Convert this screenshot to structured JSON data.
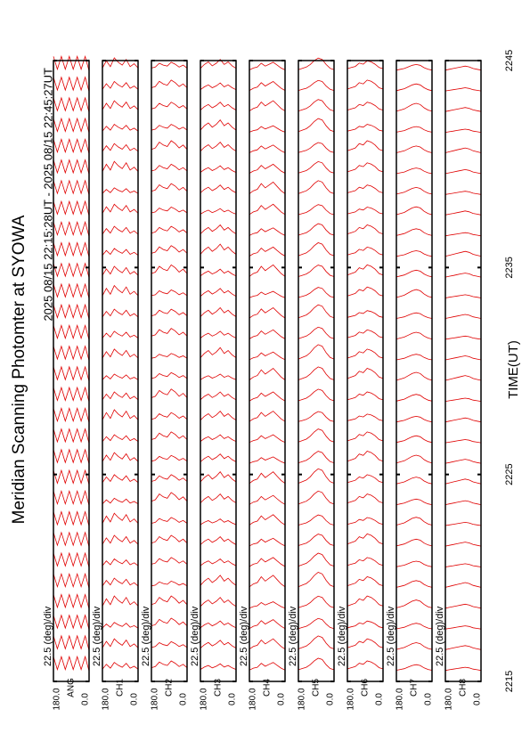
{
  "chart_data": {
    "type": "msp",
    "title": "Meridian Scanning Photomter at SYOWA",
    "subtitle": "2025 08/15 22:15:28UT - 2025 08/15 22:45:27UT",
    "xlabel": "TIME(UT)",
    "scale_label": "22.5 (deg)/div",
    "color": "#e00000",
    "xlim": [
      2215,
      2245
    ],
    "xticks": [
      2215,
      2225,
      2235,
      2245
    ],
    "anglim": [
      180,
      0
    ],
    "angle_ticks": [
      {
        "value": 180,
        "label": "180.0"
      },
      {
        "value": 0,
        "label": "0.0"
      }
    ],
    "angles": [
      0,
      20,
      40,
      60,
      80,
      100,
      120,
      140,
      160,
      180
    ],
    "scan_times": [
      2215.5,
      2216.5,
      2217.5,
      2218.5,
      2219.5,
      2220.5,
      2221.5,
      2222.5,
      2223.5,
      2224.5,
      2225.5,
      2226.5,
      2227.5,
      2228.5,
      2229.5,
      2230.5,
      2231.5,
      2232.5,
      2233.5,
      2234.5,
      2235.5,
      2236.5,
      2237.5,
      2238.5,
      2239.5,
      2240.5,
      2241.5,
      2242.5,
      2243.5,
      2244.5
    ],
    "panels": [
      {
        "name": "ANG",
        "profile": [
          0,
          0.9,
          0.1,
          0.9,
          0.1,
          0.9,
          0.1,
          0.9,
          0.1,
          0.9
        ],
        "amplitudes": [
          1,
          1,
          1,
          1,
          1,
          1,
          1,
          1,
          1,
          1,
          1,
          1,
          1,
          1,
          1,
          1,
          1,
          1,
          1,
          1,
          1,
          1,
          1,
          1,
          1,
          1,
          1,
          1,
          1,
          1
        ]
      },
      {
        "name": "CH1",
        "profile": [
          0.2,
          0.5,
          0.3,
          0.8,
          0.4,
          0.6,
          0.9,
          0.3,
          0.7,
          0.2
        ],
        "amplitudes": [
          0.6,
          0.8,
          0.5,
          0.9,
          0.7,
          0.6,
          0.8,
          0.9,
          0.5,
          0.7,
          0.8,
          0.6,
          0.9,
          0.7,
          0.5,
          0.8,
          0.6,
          0.7,
          0.9,
          0.8,
          0.6,
          0.7,
          0.8,
          0.5,
          0.9,
          0.7,
          0.6,
          0.8,
          0.7,
          0.9
        ]
      },
      {
        "name": "CH2",
        "profile": [
          0.3,
          0.6,
          0.4,
          0.7,
          0.9,
          0.5,
          0.6,
          0.8,
          0.4,
          0.3
        ],
        "amplitudes": [
          0.7,
          0.6,
          0.8,
          0.9,
          0.5,
          0.7,
          0.8,
          0.6,
          0.9,
          0.7,
          0.6,
          0.8,
          0.7,
          0.9,
          0.6,
          0.5,
          0.8,
          0.7,
          0.6,
          0.9,
          0.8,
          0.7,
          0.6,
          0.8,
          0.7,
          0.9,
          0.6,
          0.7,
          0.8,
          0.6
        ]
      },
      {
        "name": "CH3",
        "profile": [
          0.2,
          0.4,
          0.7,
          0.5,
          0.9,
          0.6,
          0.4,
          0.7,
          0.5,
          0.2
        ],
        "amplitudes": [
          0.5,
          0.7,
          0.6,
          0.8,
          0.9,
          0.6,
          0.7,
          0.5,
          0.8,
          0.9,
          0.7,
          0.6,
          0.8,
          0.7,
          0.5,
          0.9,
          0.6,
          0.8,
          0.7,
          0.6,
          0.9,
          0.8,
          0.5,
          0.7,
          0.6,
          0.8,
          0.9,
          0.7,
          0.6,
          0.8
        ]
      },
      {
        "name": "CH4",
        "profile": [
          0.1,
          0.3,
          0.6,
          0.9,
          0.7,
          0.5,
          0.8,
          0.4,
          0.3,
          0.1
        ],
        "amplitudes": [
          0.6,
          0.8,
          0.7,
          0.5,
          0.9,
          0.7,
          0.6,
          0.8,
          0.7,
          0.9,
          0.5,
          0.6,
          0.8,
          0.7,
          0.9,
          0.6,
          0.7,
          0.8,
          0.5,
          0.9,
          0.7,
          0.6,
          0.8,
          0.9,
          0.7,
          0.6,
          0.5,
          0.8,
          0.7,
          0.6
        ]
      },
      {
        "name": "CH5",
        "profile": [
          0.1,
          0.2,
          0.5,
          0.9,
          1.0,
          0.8,
          0.5,
          0.3,
          0.2,
          0.1
        ],
        "amplitudes": [
          0.8,
          0.9,
          0.7,
          0.8,
          1.0,
          0.9,
          0.8,
          0.7,
          0.9,
          1.0,
          0.8,
          0.9,
          0.7,
          0.8,
          0.9,
          1.0,
          0.8,
          0.9,
          0.7,
          0.8,
          0.9,
          0.8,
          0.7,
          0.9,
          0.8,
          0.7,
          0.9,
          0.8,
          0.7,
          0.8
        ]
      },
      {
        "name": "CH6",
        "profile": [
          0.2,
          0.3,
          0.6,
          0.8,
          0.9,
          0.6,
          0.7,
          0.4,
          0.3,
          0.2
        ],
        "amplitudes": [
          0.7,
          0.8,
          0.6,
          0.9,
          0.8,
          0.7,
          0.9,
          0.6,
          0.8,
          0.7,
          0.9,
          0.8,
          0.6,
          0.7,
          0.9,
          0.8,
          0.7,
          0.6,
          0.8,
          0.9,
          0.7,
          0.8,
          0.6,
          0.7,
          0.8,
          0.9,
          0.6,
          0.7,
          0.8,
          0.7
        ]
      },
      {
        "name": "CH7",
        "profile": [
          0.1,
          0.2,
          0.4,
          0.7,
          0.8,
          0.7,
          0.5,
          0.3,
          0.2,
          0.1
        ],
        "amplitudes": [
          0.5,
          0.6,
          0.5,
          0.7,
          0.6,
          0.5,
          0.6,
          0.7,
          0.5,
          0.6,
          0.7,
          0.6,
          0.5,
          0.6,
          0.7,
          0.5,
          0.6,
          0.5,
          0.7,
          0.6,
          0.5,
          0.6,
          0.7,
          0.6,
          0.5,
          0.6,
          0.5,
          0.7,
          0.6,
          0.5
        ]
      },
      {
        "name": "CH8",
        "profile": [
          0.1,
          0.2,
          0.3,
          0.5,
          0.6,
          0.5,
          0.4,
          0.3,
          0.2,
          0.1
        ],
        "amplitudes": [
          0.4,
          0.5,
          0.4,
          0.5,
          0.6,
          0.4,
          0.5,
          0.4,
          0.5,
          0.6,
          0.5,
          0.4,
          0.5,
          0.4,
          0.6,
          0.5,
          0.4,
          0.5,
          0.4,
          0.5,
          0.6,
          0.4,
          0.5,
          0.4,
          0.5,
          0.6,
          0.4,
          0.5,
          0.4,
          0.5
        ]
      }
    ]
  }
}
